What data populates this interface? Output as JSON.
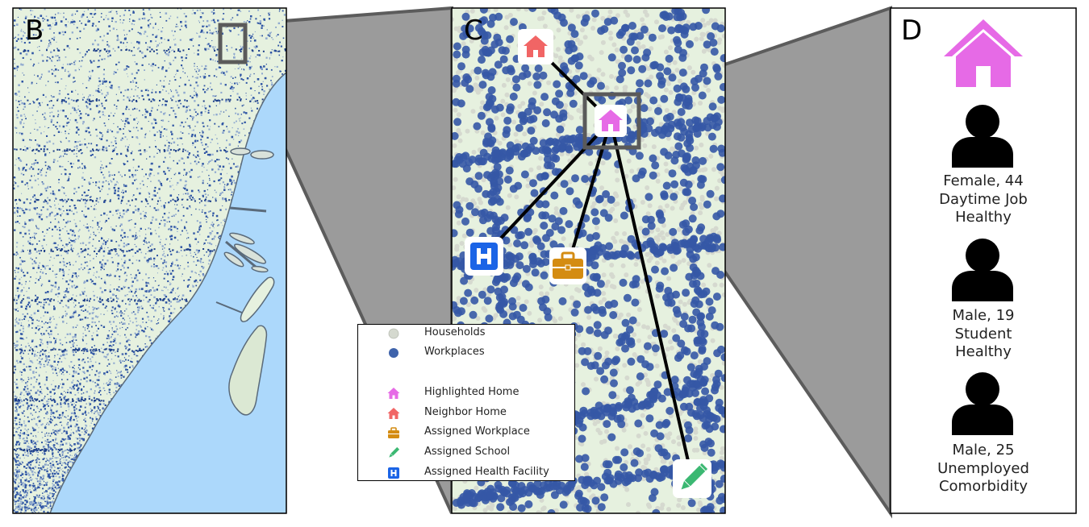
{
  "panels": {
    "b": {
      "letter": "B"
    },
    "c": {
      "letter": "C"
    },
    "d": {
      "letter": "D"
    }
  },
  "colors": {
    "household": "#d5d9cf",
    "workplace": "#2f55a4",
    "water": "#acd8fb",
    "land": "#e6f1df",
    "highlighted_home": "#e66ae6",
    "neighbor_home": "#f16565",
    "workplace_icon": "#d48c12",
    "school_icon": "#3bb872",
    "health_icon": "#1b64e6",
    "zoom_wedge": "#9b9b9b",
    "zoom_box": "#5a5a5a"
  },
  "legend": {
    "items": [
      {
        "icon": "household-marker",
        "label": "Households"
      },
      {
        "icon": "workplace-marker",
        "label": "Workplaces"
      },
      {
        "icon": "house-icon",
        "label": "Highlighted Home"
      },
      {
        "icon": "house-icon",
        "label": "Neighbor Home"
      },
      {
        "icon": "briefcase-icon",
        "label": "Assigned Workplace"
      },
      {
        "icon": "pencil-icon",
        "label": "Assigned School"
      },
      {
        "icon": "hospital-icon",
        "label": "Assigned Health Facility"
      }
    ]
  },
  "household_members": [
    {
      "lines": [
        "Female, 44",
        "Daytime Job",
        "Healthy"
      ]
    },
    {
      "lines": [
        "Male, 19",
        "Student",
        "Healthy"
      ]
    },
    {
      "lines": [
        "Male, 25",
        "Unemployed",
        "Comorbidity"
      ]
    }
  ]
}
